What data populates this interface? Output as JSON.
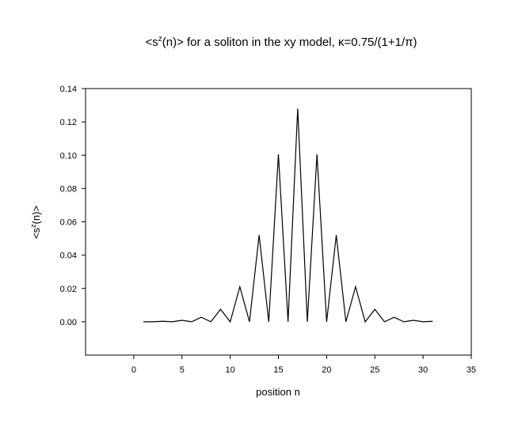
{
  "chart_data": {
    "type": "line",
    "title": {
      "pre": "<s",
      "sup": "z",
      "post": "(n)> for a soliton in the xy model, κ=0.75/(1+1/π)"
    },
    "xlabel": "position n",
    "ylabel": {
      "pre": "<s",
      "sup": "z",
      "post": "(n)>"
    },
    "xlim": [
      -5,
      35
    ],
    "ylim": [
      -0.02,
      0.14
    ],
    "xticks": [
      0,
      5,
      10,
      15,
      20,
      25,
      30,
      35
    ],
    "yticks": [
      0.0,
      0.02,
      0.04,
      0.06,
      0.08,
      0.1,
      0.12,
      0.14
    ],
    "xtick_labels": [
      "0",
      "5",
      "10",
      "15",
      "20",
      "25",
      "30",
      "35"
    ],
    "ytick_labels": [
      "0.00",
      "0.02",
      "0.04",
      "0.06",
      "0.08",
      "0.10",
      "0.12",
      "0.14"
    ],
    "grid": false,
    "series": [
      {
        "x": [
          1,
          2,
          3,
          4,
          5,
          6,
          7,
          8,
          9,
          10,
          11,
          12,
          13,
          14,
          15,
          16,
          17,
          18,
          19,
          20,
          21,
          22,
          23,
          24,
          25,
          26,
          27,
          28,
          29,
          30,
          31
        ],
        "y": [
          0.0,
          0.0,
          0.0003,
          0.0,
          0.0009,
          0.0,
          0.0027,
          0.0,
          0.0075,
          0.0,
          0.021,
          0.0,
          0.052,
          0.0,
          0.1005,
          0.0,
          0.128,
          0.0,
          0.1005,
          0.0,
          0.052,
          0.0,
          0.021,
          0.0,
          0.0075,
          0.0,
          0.0027,
          0.0,
          0.0009,
          0.0,
          0.0003
        ]
      }
    ]
  }
}
